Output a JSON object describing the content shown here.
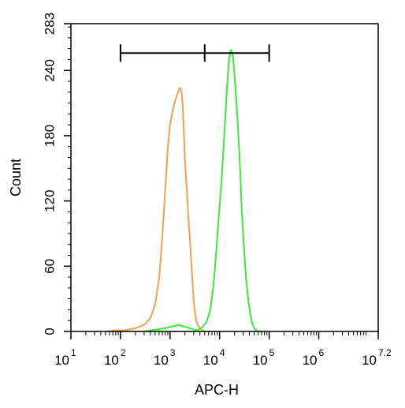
{
  "chart_data": {
    "type": "line",
    "title": "",
    "xlabel": "APC-H",
    "ylabel": "Count",
    "xscale": "log",
    "xlim": [
      10,
      15848931.9
    ],
    "ylim": [
      0,
      283
    ],
    "x_ticks": [
      {
        "base": "10",
        "exp": "1"
      },
      {
        "base": "10",
        "exp": "2"
      },
      {
        "base": "10",
        "exp": "3"
      },
      {
        "base": "10",
        "exp": "4"
      },
      {
        "base": "10",
        "exp": "5"
      },
      {
        "base": "10",
        "exp": "6"
      },
      {
        "base": "10",
        "exp": "7.2"
      }
    ],
    "y_ticks": [
      "0",
      "60",
      "120",
      "180",
      "240",
      "283"
    ],
    "grid": false,
    "legend": "none",
    "gate": {
      "x_start": 100,
      "x_mid": 5000,
      "x_end": 100000,
      "y": 256
    },
    "series": [
      {
        "color": "#f0a050",
        "x": [
          50,
          80,
          120,
          200,
          300,
          400,
          500,
          600,
          700,
          800,
          900,
          1000,
          1100,
          1200,
          1300,
          1400,
          1500,
          1600,
          1700,
          1800,
          1900,
          2000,
          2200,
          2400,
          2600,
          2800,
          3000,
          3300,
          3600,
          4000,
          4500,
          5000
        ],
        "y": [
          0,
          1,
          1,
          3,
          6,
          12,
          25,
          48,
          88,
          130,
          168,
          190,
          200,
          208,
          214,
          218,
          222,
          224,
          221,
          208,
          184,
          158,
          128,
          98,
          75,
          50,
          28,
          12,
          6,
          3,
          1,
          0
        ]
      },
      {
        "color": "#3ae83a",
        "x": [
          300,
          800,
          1500,
          2500,
          3500,
          4500,
          5500,
          6500,
          7500,
          8500,
          9500,
          11000,
          12500,
          14000,
          15500,
          17000,
          18500,
          20000,
          22000,
          24000,
          26000,
          28000,
          31000,
          34000,
          38000,
          42000,
          46000,
          50000,
          55000,
          60000,
          70000
        ],
        "y": [
          0,
          3,
          6,
          3,
          1,
          4,
          9,
          20,
          42,
          72,
          102,
          140,
          182,
          222,
          250,
          259,
          254,
          236,
          210,
          180,
          148,
          112,
          78,
          50,
          28,
          15,
          7,
          3,
          1,
          0,
          0
        ]
      }
    ]
  }
}
